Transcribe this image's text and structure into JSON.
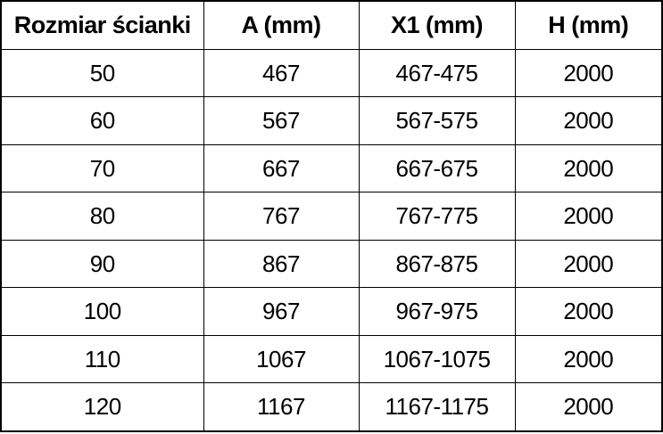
{
  "chart_data": {
    "type": "table",
    "title": "",
    "columns": [
      "Rozmiar ścianki",
      "A (mm)",
      "X1 (mm)",
      "H (mm)"
    ],
    "rows": [
      [
        "50",
        "467",
        "467-475",
        "2000"
      ],
      [
        "60",
        "567",
        "567-575",
        "2000"
      ],
      [
        "70",
        "667",
        "667-675",
        "2000"
      ],
      [
        "80",
        "767",
        "767-775",
        "2000"
      ],
      [
        "90",
        "867",
        "867-875",
        "2000"
      ],
      [
        "100",
        "967",
        "967-975",
        "2000"
      ],
      [
        "110",
        "1067",
        "1067-1075",
        "2000"
      ],
      [
        "120",
        "1167",
        "1167-1175",
        "2000"
      ]
    ]
  }
}
